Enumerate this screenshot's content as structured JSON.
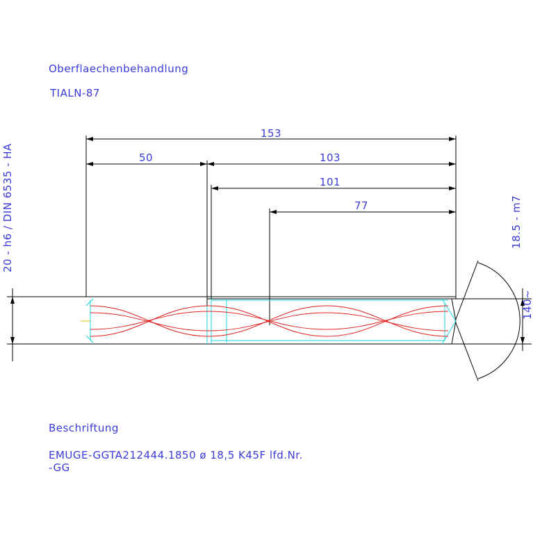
{
  "notes": {
    "surface_heading": "Oberflaechenbehandlung",
    "surface_value": "TIALN-87",
    "label_heading": "Beschriftung",
    "label_line1": "EMUGE-GGTA212444.1850 ø 18,5  K45F lfd.Nr.",
    "label_line2": "-GG"
  },
  "dimensions": {
    "overall_length": "153",
    "shank_length": "50",
    "body_length": "103",
    "flute_length": "101",
    "cut_length": "77",
    "shank_spec": "20 - h6 / DIN 6535 - HA",
    "diameter_spec": "18.5 - m7",
    "point_angle": "140~"
  }
}
